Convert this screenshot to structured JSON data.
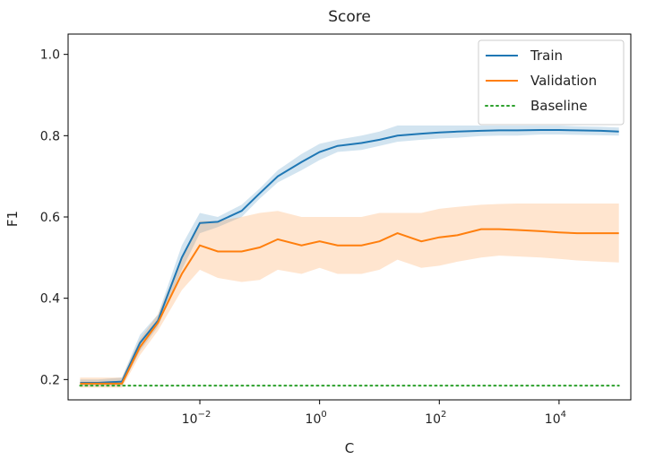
{
  "chart_data": {
    "type": "line",
    "title": "Score",
    "xlabel": "C",
    "ylabel": "F1",
    "xscale": "log",
    "xlim": [
      6.3e-05,
      158000
    ],
    "ylim": [
      0.15,
      1.05
    ],
    "grid": false,
    "legend_position": "top-right",
    "xticks": [
      {
        "value": 0.01,
        "base": "10",
        "exp": "−2"
      },
      {
        "value": 1,
        "base": "10",
        "exp": "0"
      },
      {
        "value": 100,
        "base": "10",
        "exp": "2"
      },
      {
        "value": 10000,
        "base": "10",
        "exp": "4"
      }
    ],
    "yticks": [
      {
        "value": 0.2,
        "label": "0.2"
      },
      {
        "value": 0.4,
        "label": "0.4"
      },
      {
        "value": 0.6,
        "label": "0.6"
      },
      {
        "value": 0.8,
        "label": "0.8"
      },
      {
        "value": 1.0,
        "label": "1.0"
      }
    ],
    "x": [
      0.0001,
      0.0002,
      0.0005,
      0.001,
      0.002,
      0.005,
      0.01,
      0.02,
      0.05,
      0.1,
      0.2,
      0.5,
      1,
      2,
      5,
      10,
      20,
      50,
      100,
      200,
      500,
      1000,
      2000,
      5000,
      10000,
      20000,
      50000,
      100000
    ],
    "series": [
      {
        "name": "Train",
        "color": "#1f77b4",
        "style": "solid",
        "values": [
          0.192,
          0.192,
          0.195,
          0.29,
          0.345,
          0.5,
          0.585,
          0.588,
          0.615,
          0.658,
          0.7,
          0.735,
          0.76,
          0.775,
          0.782,
          0.79,
          0.8,
          0.805,
          0.808,
          0.81,
          0.812,
          0.813,
          0.813,
          0.814,
          0.814,
          0.813,
          0.812,
          0.81
        ],
        "upper": [
          0.2,
          0.2,
          0.205,
          0.31,
          0.36,
          0.53,
          0.61,
          0.6,
          0.63,
          0.67,
          0.715,
          0.755,
          0.78,
          0.79,
          0.8,
          0.81,
          0.825,
          0.825,
          0.825,
          0.825,
          0.825,
          0.825,
          0.825,
          0.825,
          0.825,
          0.823,
          0.822,
          0.82
        ],
        "lower": [
          0.184,
          0.184,
          0.185,
          0.27,
          0.33,
          0.47,
          0.56,
          0.575,
          0.6,
          0.645,
          0.685,
          0.715,
          0.74,
          0.76,
          0.765,
          0.775,
          0.785,
          0.79,
          0.793,
          0.795,
          0.799,
          0.8,
          0.8,
          0.803,
          0.803,
          0.802,
          0.801,
          0.8
        ]
      },
      {
        "name": "Validation",
        "color": "#ff7f0e",
        "style": "solid",
        "values": [
          0.19,
          0.19,
          0.19,
          0.28,
          0.34,
          0.46,
          0.53,
          0.515,
          0.515,
          0.525,
          0.545,
          0.53,
          0.54,
          0.53,
          0.53,
          0.54,
          0.56,
          0.54,
          0.55,
          0.555,
          0.57,
          0.57,
          0.568,
          0.565,
          0.562,
          0.56,
          0.56,
          0.56
        ],
        "upper": [
          0.205,
          0.205,
          0.205,
          0.3,
          0.36,
          0.5,
          0.59,
          0.59,
          0.6,
          0.61,
          0.615,
          0.6,
          0.6,
          0.6,
          0.6,
          0.61,
          0.61,
          0.61,
          0.62,
          0.625,
          0.63,
          0.632,
          0.633,
          0.633,
          0.633,
          0.633,
          0.633,
          0.633
        ],
        "lower": [
          0.18,
          0.18,
          0.18,
          0.26,
          0.32,
          0.42,
          0.47,
          0.45,
          0.44,
          0.445,
          0.47,
          0.46,
          0.475,
          0.46,
          0.46,
          0.47,
          0.495,
          0.475,
          0.48,
          0.49,
          0.5,
          0.505,
          0.503,
          0.5,
          0.497,
          0.493,
          0.49,
          0.488
        ]
      },
      {
        "name": "Baseline",
        "color": "#2ca02c",
        "style": "dotted",
        "values": [
          0.185,
          0.185,
          0.185,
          0.185,
          0.185,
          0.185,
          0.185,
          0.185,
          0.185,
          0.185,
          0.185,
          0.185,
          0.185,
          0.185,
          0.185,
          0.185,
          0.185,
          0.185,
          0.185,
          0.185,
          0.185,
          0.185,
          0.185,
          0.185,
          0.185,
          0.185,
          0.185,
          0.185
        ]
      }
    ]
  }
}
